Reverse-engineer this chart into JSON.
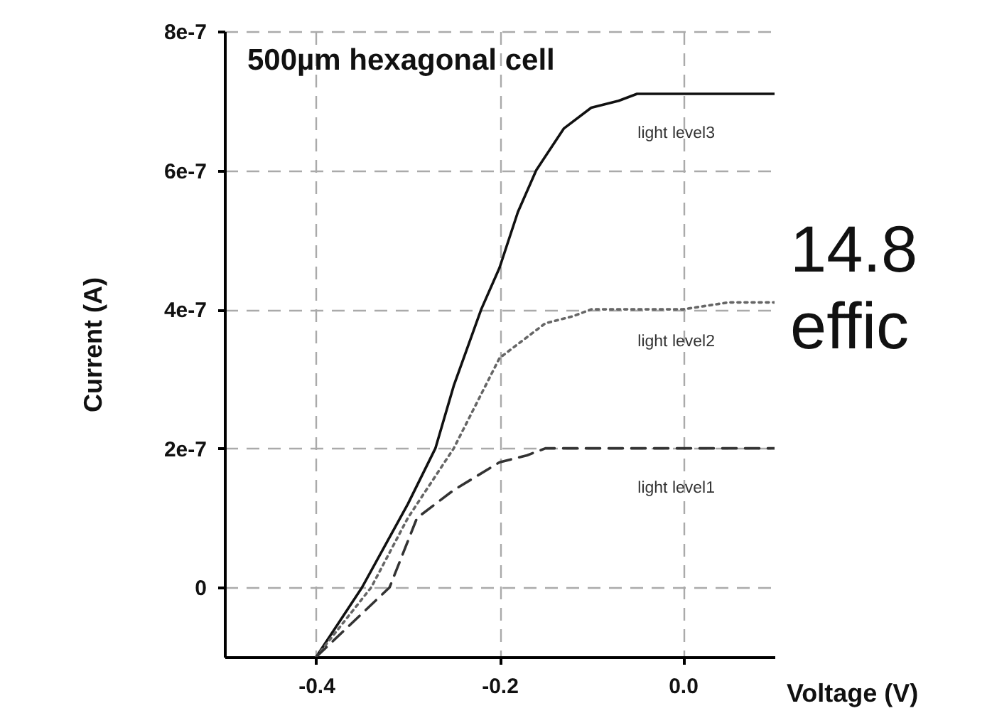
{
  "chart_data": {
    "type": "line",
    "title": "500µm hexagonal cell",
    "xlabel": "Voltage (V)",
    "ylabel": "Current (A)",
    "xlim": [
      -0.5,
      0.1
    ],
    "xticks": [
      {
        "value": -0.4,
        "label": "-0.4"
      },
      {
        "value": -0.2,
        "label": "-0.2"
      },
      {
        "value": 0,
        "label": "0.0"
      }
    ],
    "ylim": [
      -1e-07,
      8e-07
    ],
    "yticks": [
      {
        "value": 0,
        "label": "0"
      },
      {
        "value": 2e-07,
        "label": "2e-7"
      },
      {
        "value": 4e-07,
        "label": "4e-7"
      },
      {
        "value": 6e-07,
        "label": "6e-7"
      },
      {
        "value": 8e-07,
        "label": "8e-7"
      }
    ],
    "grid": true,
    "series": [
      {
        "name": "light level3",
        "color": "#111111",
        "line_style": "solid",
        "x": [
          -0.4,
          -0.35,
          -0.3,
          -0.27,
          -0.25,
          -0.22,
          -0.2,
          -0.18,
          -0.16,
          -0.13,
          -0.1,
          -0.07,
          -0.05,
          0,
          0.05,
          0.1
        ],
        "values": [
          -1e-07,
          0,
          1.2e-07,
          2e-07,
          2.9e-07,
          4e-07,
          4.6e-07,
          5.4e-07,
          6e-07,
          6.6e-07,
          6.9e-07,
          7e-07,
          7.1e-07,
          7.1e-07,
          7.1e-07,
          7.1e-07
        ]
      },
      {
        "name": "light level2",
        "color": "#666666",
        "line_style": "dotted",
        "x": [
          -0.4,
          -0.34,
          -0.3,
          -0.25,
          -0.2,
          -0.17,
          -0.15,
          -0.12,
          -0.1,
          -0.05,
          0,
          0.05,
          0.1
        ],
        "values": [
          -1e-07,
          0,
          1e-07,
          2e-07,
          3.3e-07,
          3.6e-07,
          3.8e-07,
          3.9e-07,
          4e-07,
          4e-07,
          4e-07,
          4.1e-07,
          4.1e-07
        ]
      },
      {
        "name": "light level1",
        "color": "#333333",
        "line_style": "dashed",
        "x": [
          -0.4,
          -0.32,
          -0.29,
          -0.25,
          -0.2,
          -0.17,
          -0.15,
          -0.1,
          -0.05,
          0,
          0.05,
          0.1
        ],
        "values": [
          -1e-07,
          0,
          1e-07,
          1.4e-07,
          1.8e-07,
          1.9e-07,
          2e-07,
          2e-07,
          2e-07,
          2e-07,
          2e-07,
          2e-07
        ]
      }
    ],
    "annotations": [
      "14.8",
      "effic"
    ]
  }
}
